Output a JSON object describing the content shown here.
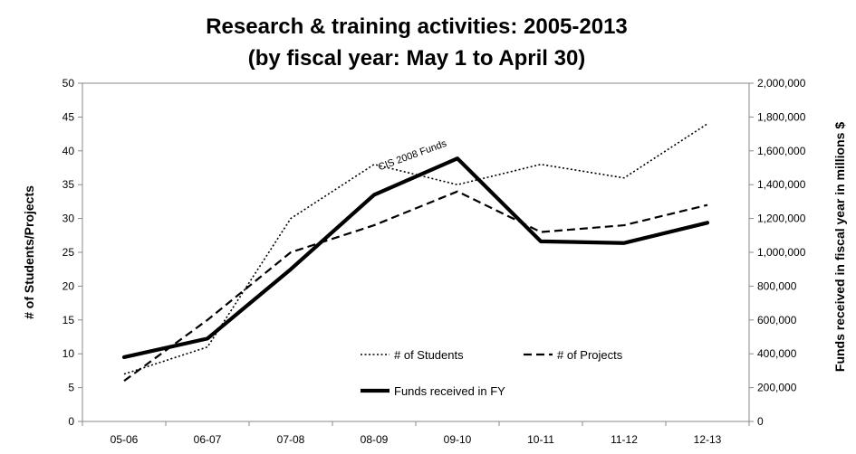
{
  "chart_data": {
    "type": "line",
    "title": "Research & training activities: 2005-2013",
    "subtitle": "(by fiscal year: May 1 to April 30)",
    "categories": [
      "05-06",
      "06-07",
      "07-08",
      "08-09",
      "09-10",
      "10-11",
      "11-12",
      "12-13"
    ],
    "y_left": {
      "label": "# of Students/Projects",
      "ylim": [
        0,
        50
      ],
      "ticks": [
        0,
        5,
        10,
        15,
        20,
        25,
        30,
        35,
        40,
        45,
        50
      ],
      "tick_labels": [
        "0",
        "5",
        "10",
        "15",
        "20",
        "25",
        "30",
        "35",
        "40",
        "45",
        "50"
      ]
    },
    "y_right": {
      "label": "Funds received in fiscal year in millions $",
      "ylim": [
        0,
        2000000
      ],
      "ticks": [
        0,
        200000,
        400000,
        600000,
        800000,
        1000000,
        1200000,
        1400000,
        1600000,
        1800000,
        2000000
      ],
      "tick_labels": [
        "0",
        "200,000",
        "400,000",
        "600,000",
        "800,000",
        "1,000,000",
        "1,200,000",
        "1,400,000",
        "1,600,000",
        "1,800,000",
        "2,000,000"
      ]
    },
    "series": [
      {
        "name": "# of Students",
        "axis": "left",
        "style": "dotted",
        "color": "#000000",
        "values": [
          7,
          11,
          30,
          38,
          35,
          38,
          36,
          44
        ]
      },
      {
        "name": "# of Projects",
        "axis": "left",
        "style": "dashed",
        "color": "#000000",
        "values": [
          6,
          15,
          25,
          29,
          34,
          28,
          29,
          32
        ]
      },
      {
        "name": "Funds received in FY",
        "axis": "right",
        "style": "solid-thick",
        "color": "#000000",
        "values": [
          380000,
          490000,
          900000,
          1340000,
          1555000,
          1065000,
          1055000,
          1175000
        ]
      }
    ],
    "annotations": [
      {
        "text": "CIS 2008 Funds",
        "category": "08-09",
        "value": 1420000,
        "axis": "right"
      }
    ],
    "grid": false,
    "legend_position": "bottom-right-inside"
  }
}
